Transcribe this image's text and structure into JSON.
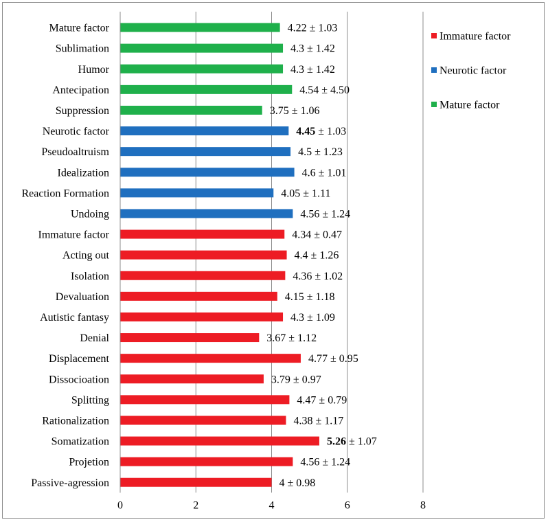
{
  "chart_data": {
    "type": "bar",
    "orientation": "horizontal",
    "xlim": [
      0,
      8
    ],
    "x_ticks": [
      "0",
      "2",
      "4",
      "6",
      "8"
    ],
    "grid": "vertical",
    "legend_position": "right",
    "colors": {
      "Immature factor": "#ed1c24",
      "Neurotic factor": "#1f6fbf",
      "Mature factor": "#1fb04b"
    },
    "legend": [
      "Immature factor",
      "Neurotic factor",
      "Mature factor"
    ],
    "categories": [
      "Mature factor",
      "Sublimation",
      "Humor",
      "Antecipation",
      "Suppression",
      "Neurotic factor",
      "Pseudoaltruism",
      "Idealization",
      "Reaction Formation",
      "Undoing",
      "Immature factor",
      "Acting out",
      "Isolation",
      "Devaluation",
      "Autistic fantasy",
      "Denial",
      "Displacement",
      "Dissocioation",
      "Splitting",
      "Rationalization",
      "Somatization",
      "Projetion",
      "Passive-agression"
    ],
    "groups": [
      "Mature factor",
      "Mature factor",
      "Mature factor",
      "Mature factor",
      "Mature factor",
      "Neurotic factor",
      "Neurotic factor",
      "Neurotic factor",
      "Neurotic factor",
      "Neurotic factor",
      "Immature factor",
      "Immature factor",
      "Immature factor",
      "Immature factor",
      "Immature factor",
      "Immature factor",
      "Immature factor",
      "Immature factor",
      "Immature factor",
      "Immature factor",
      "Immature factor",
      "Immature factor",
      "Immature factor"
    ],
    "values": [
      4.22,
      4.3,
      4.3,
      4.54,
      3.75,
      4.45,
      4.5,
      4.6,
      4.05,
      4.56,
      4.34,
      4.4,
      4.36,
      4.15,
      4.3,
      3.67,
      4.77,
      3.79,
      4.47,
      4.38,
      5.26,
      4.56,
      4.0
    ],
    "sd": [
      1.03,
      1.42,
      1.42,
      4.5,
      1.06,
      1.03,
      1.23,
      1.01,
      1.11,
      1.24,
      0.47,
      1.26,
      1.02,
      1.18,
      1.09,
      1.12,
      0.95,
      0.97,
      0.79,
      1.17,
      1.07,
      1.24,
      0.98
    ],
    "mean_labels": [
      "4.22",
      "4.3",
      "4.3",
      "4.54",
      "3.75",
      "4.45",
      "4.5",
      "4.6",
      "4.05",
      "4.56",
      "4.34",
      "4.4",
      "4.36",
      "4.15",
      "4.3",
      "3.67",
      "4.77",
      "3.79",
      "4.47",
      "4.38",
      "5.26",
      "4.56",
      "4"
    ],
    "sd_labels": [
      "1.03",
      "1.42",
      "1.42",
      "4.50",
      "1.06",
      "1.03",
      "1.23",
      "1.01",
      "1.11",
      "1.24",
      "0.47",
      "1.26",
      "1.02",
      "1.18",
      "1.09",
      "1.12",
      "0.95",
      "0.97",
      "0.79",
      "1.17",
      "1.07",
      "1.24",
      "0.98"
    ],
    "bold_means": [
      "Neurotic factor",
      "Somatization"
    ],
    "label_separator": "±"
  }
}
